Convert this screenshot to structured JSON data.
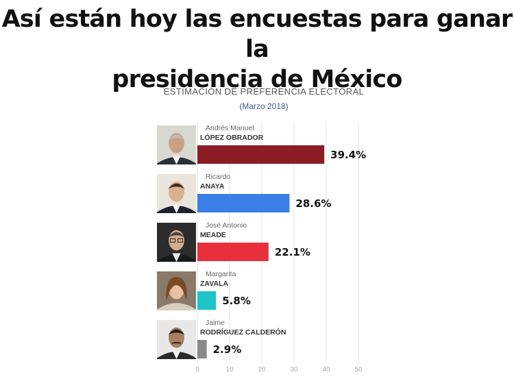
{
  "headline": {
    "line1": "Así están hoy las encuestas para ganar la",
    "line2": "presidencia de México"
  },
  "chart_data": {
    "type": "bar",
    "orientation": "horizontal",
    "title": "ESTIMACIÓN DE PREFERENCIA ELECTORAL",
    "subtitle": "(Marzo 2018)",
    "xlim": [
      0,
      50
    ],
    "xticks": [
      0,
      10,
      20,
      30,
      40,
      50
    ],
    "grid": true,
    "categories": [
      {
        "first": "Andrés Manuel",
        "last": "LÓPEZ OBRADOR",
        "value": 39.4,
        "label": "39.4%",
        "color": "#8b1c24",
        "photo": "man-in-suit-gray-hair-icon"
      },
      {
        "first": "Ricardo",
        "last": "ANAYA",
        "value": 28.6,
        "label": "28.6%",
        "color": "#3a7ee8",
        "photo": "young-man-in-suit-icon"
      },
      {
        "first": "José Antonio",
        "last": "MEADE",
        "value": 22.1,
        "label": "22.1%",
        "color": "#e8303c",
        "photo": "man-with-glasses-icon"
      },
      {
        "first": "Margarita",
        "last": "ZAVALA",
        "value": 5.8,
        "label": "5.8%",
        "color": "#1fc4c8",
        "photo": "woman-smiling-icon"
      },
      {
        "first": "Jaime",
        "last": "RODRÍGUEZ CALDERÓN",
        "value": 2.9,
        "label": "2.9%",
        "color": "#8a8a8a",
        "photo": "man-with-mustache-icon"
      }
    ]
  }
}
